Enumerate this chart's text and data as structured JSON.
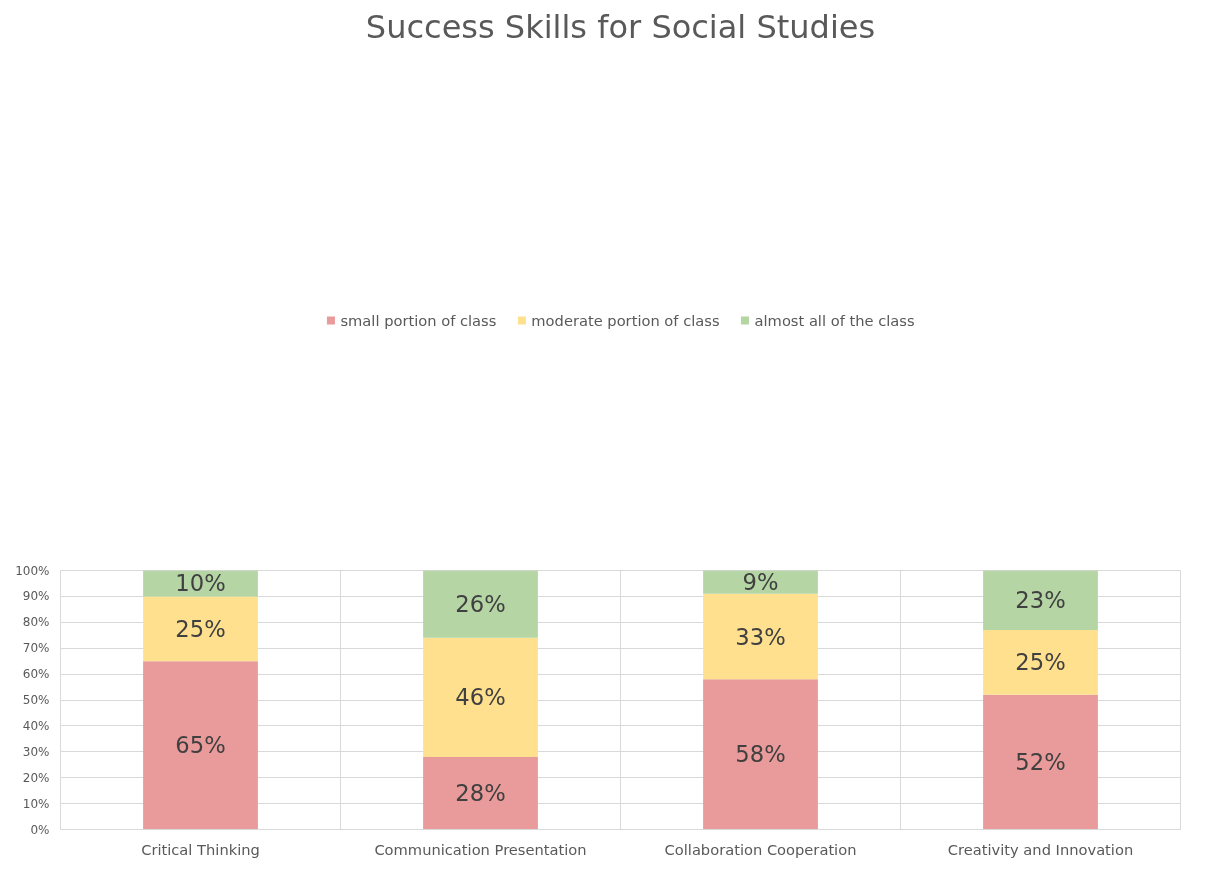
{
  "chart_data": {
    "type": "bar",
    "title": "Success Skills for Social Studies",
    "stacked": true,
    "legend": "top",
    "grid": true,
    "categories": [
      "Critical Thinking",
      "Communication Presentation",
      "Collaboration Cooperation",
      "Creativity and Innovation"
    ],
    "series": [
      {
        "name": "small portion of class",
        "color": "#e99a9a",
        "values": [
          65,
          28,
          58,
          52
        ],
        "value_labels": [
          "65%",
          "28%",
          "58%",
          "52%"
        ]
      },
      {
        "name": "moderate portion of class",
        "color": "#fee08f",
        "values": [
          25,
          46,
          33,
          25
        ],
        "value_labels": [
          "25%",
          "46%",
          "33%",
          "25%"
        ]
      },
      {
        "name": "almost all of the class",
        "color": "#b5d6a4",
        "values": [
          10,
          26,
          9,
          23
        ],
        "value_labels": [
          "10%",
          "26%",
          "9%",
          "23%"
        ]
      }
    ],
    "ylim": [
      0,
      100
    ],
    "yticks": [
      {
        "value": 0,
        "label": "0%"
      },
      {
        "value": 10,
        "label": "10%"
      },
      {
        "value": 20,
        "label": "20%"
      },
      {
        "value": 30,
        "label": "30%"
      },
      {
        "value": 40,
        "label": "40%"
      },
      {
        "value": 50,
        "label": "50%"
      },
      {
        "value": 60,
        "label": "60%"
      },
      {
        "value": 70,
        "label": "70%"
      },
      {
        "value": 80,
        "label": "80%"
      },
      {
        "value": 90,
        "label": "90%"
      },
      {
        "value": 100,
        "label": "100%"
      }
    ]
  }
}
